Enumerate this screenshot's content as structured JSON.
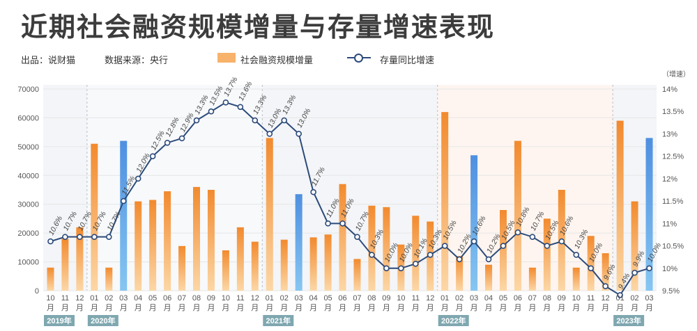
{
  "title": "近期社会融资规模增量与存量增速表现",
  "source": "出品：说财猫",
  "data_source": "数据来源：央行",
  "legend": {
    "bar": "社会融资规模增量",
    "line": "存量同比增速"
  },
  "colors": {
    "bar": "#f7a04a",
    "bar_highlight": "#5aa7e6",
    "line": "#2c4a7a",
    "year_box": "#7fa7b0"
  },
  "chart_data": {
    "type": "bar",
    "y_left": {
      "ticks": [
        0,
        10000,
        20000,
        30000,
        40000,
        50000,
        60000,
        70000
      ],
      "ylim": [
        0,
        70000
      ]
    },
    "y_right": {
      "unit_label": "（增速）",
      "ticks": [
        "9.5%",
        "10%",
        "10.5%",
        "11%",
        "11.5%",
        "12%",
        "12.5%",
        "13%",
        "13.5%",
        "14%"
      ],
      "ylim": [
        9.5,
        14
      ]
    },
    "categories": [
      "10",
      "11",
      "12",
      "01",
      "02",
      "03",
      "04",
      "05",
      "06",
      "07",
      "08",
      "09",
      "10",
      "11",
      "12",
      "01",
      "02",
      "03",
      "04",
      "05",
      "06",
      "07",
      "08",
      "09",
      "10",
      "11",
      "12",
      "01",
      "02",
      "03",
      "04",
      "05",
      "06",
      "07",
      "08",
      "09",
      "10",
      "11",
      "12",
      "01",
      "02",
      "03"
    ],
    "month_suffix": "月",
    "years": [
      {
        "label": "2019年",
        "start": 0,
        "end": 2
      },
      {
        "label": "2020年",
        "start": 3,
        "end": 14
      },
      {
        "label": "2021年",
        "start": 15,
        "end": 26
      },
      {
        "label": "2022年",
        "start": 27,
        "end": 38
      },
      {
        "label": "2023年",
        "start": 39,
        "end": 41
      }
    ],
    "series": [
      {
        "name": "社会融资规模增量",
        "kind": "bar",
        "values": [
          8000,
          18000,
          22000,
          51000,
          8000,
          52000,
          31000,
          31500,
          34500,
          15500,
          36000,
          35000,
          14000,
          22000,
          17000,
          53000,
          17700,
          33500,
          18500,
          19500,
          37000,
          11000,
          29500,
          29000,
          16000,
          26000,
          24000,
          62000,
          12000,
          47000,
          9000,
          28000,
          52000,
          8000,
          25000,
          35000,
          8000,
          19000,
          13000,
          59000,
          31000,
          53000
        ],
        "highlight": [
          5,
          17,
          29,
          41
        ]
      },
      {
        "name": "存量同比增速",
        "kind": "line",
        "values": [
          10.6,
          10.7,
          10.7,
          10.7,
          10.7,
          11.5,
          12.0,
          12.5,
          12.8,
          12.9,
          13.3,
          13.5,
          13.7,
          13.6,
          13.3,
          13.0,
          13.3,
          13.0,
          11.7,
          11.0,
          11.0,
          10.7,
          10.3,
          10.0,
          10.0,
          10.1,
          10.3,
          10.5,
          10.2,
          10.6,
          10.2,
          10.5,
          10.8,
          10.7,
          10.5,
          10.6,
          10.3,
          10.0,
          9.6,
          9.4,
          9.9,
          10.0
        ],
        "labels": [
          "10.6%",
          "10.7%",
          "10.7%",
          "10.7%",
          "10.7%",
          "11.5%",
          "12.0%",
          "12.5%",
          "12.8%",
          "12.9%",
          "13.3%",
          "13.5%",
          "13.7%",
          "13.6%",
          "13.3%",
          "13.0%",
          "13.3%",
          "13.0%",
          "11.7%",
          "11.0%",
          "11.0%",
          "10.7%",
          "10.3%",
          "10.0%",
          "10.0%",
          "10.1%",
          "10.3%",
          "10.5%",
          "10.2%",
          "10.6%",
          "10.2%",
          "10.5%",
          "10.8%",
          "10.7%",
          "10.5%",
          "10.6%",
          "10.3%",
          "10.0%",
          "9.6%",
          "9.4%",
          "9.9%",
          "10.0%"
        ]
      }
    ]
  }
}
